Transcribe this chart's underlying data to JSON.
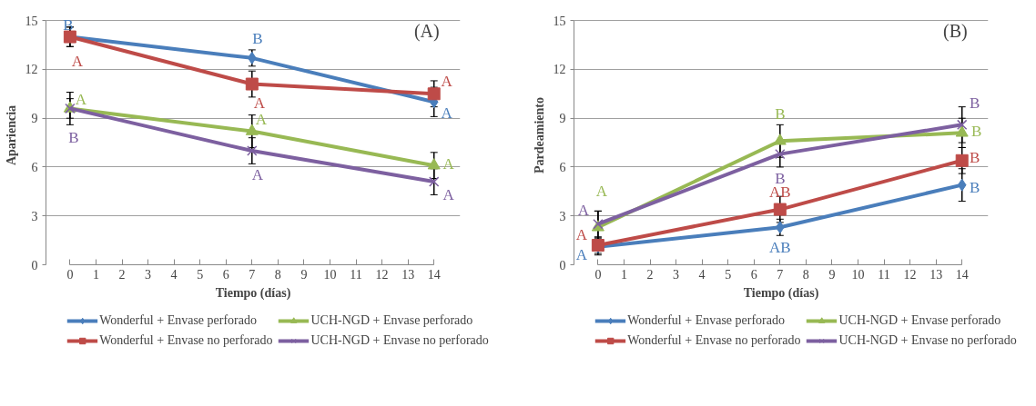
{
  "chart_data": [
    {
      "type": "line",
      "title": "(A)",
      "xlabel": "Tiempo (días)",
      "ylabel": "Apariencia",
      "x": [
        0,
        7,
        14
      ],
      "xlim": [
        0,
        14
      ],
      "xticks": [
        0,
        1,
        2,
        3,
        4,
        5,
        6,
        7,
        8,
        9,
        10,
        11,
        12,
        13,
        14
      ],
      "ylim": [
        0,
        15
      ],
      "yticks": [
        0,
        3,
        6,
        9,
        12,
        15
      ],
      "grid": "y",
      "legend": "bottom",
      "series": [
        {
          "name": "Wonderful + Envase perforado",
          "color": "#4a7ebb",
          "marker": "diamond",
          "values": [
            14.0,
            12.7,
            10.0
          ],
          "errors": [
            0.6,
            0.5,
            0.9
          ],
          "value_labels": [
            "B",
            "B",
            "A"
          ]
        },
        {
          "name": "Wonderful + Envase no perforado",
          "color": "#be4b48",
          "marker": "square",
          "values": [
            14.0,
            11.1,
            10.5
          ],
          "errors": [
            0.6,
            0.8,
            0.8
          ],
          "value_labels": [
            "A",
            "A",
            "A"
          ]
        },
        {
          "name": "UCH-NGD + Envase perforado",
          "color": "#98b954",
          "marker": "triangle",
          "values": [
            9.6,
            8.2,
            6.1
          ],
          "errors": [
            1.0,
            1.0,
            0.8
          ],
          "value_labels": [
            "A",
            "A",
            "A"
          ]
        },
        {
          "name": "UCH-NGD + Envase no perforado",
          "color": "#7d60a0",
          "marker": "cross",
          "values": [
            9.6,
            7.0,
            5.1
          ],
          "errors": [
            0.6,
            0.8,
            0.8
          ],
          "value_labels": [
            "B",
            "A",
            "A"
          ]
        }
      ]
    },
    {
      "type": "line",
      "title": "(B)",
      "xlabel": "Tiempo (días)",
      "ylabel": "Pardeamiento",
      "x": [
        0,
        7,
        14
      ],
      "xlim": [
        0,
        14
      ],
      "xticks": [
        0,
        1,
        2,
        3,
        4,
        5,
        6,
        7,
        8,
        9,
        10,
        11,
        12,
        13,
        14
      ],
      "ylim": [
        0,
        15
      ],
      "yticks": [
        0,
        3,
        6,
        9,
        12,
        15
      ],
      "grid": "y",
      "legend": "bottom",
      "series": [
        {
          "name": "Wonderful + Envase perforado",
          "color": "#4a7ebb",
          "marker": "diamond",
          "values": [
            1.1,
            2.3,
            4.9
          ],
          "errors": [
            0.5,
            0.5,
            1.0
          ],
          "value_labels": [
            "A",
            "AB",
            "B"
          ]
        },
        {
          "name": "Wonderful + Envase no perforado",
          "color": "#be4b48",
          "marker": "square",
          "values": [
            1.2,
            3.4,
            6.4
          ],
          "errors": [
            0.5,
            0.8,
            0.8
          ],
          "value_labels": [
            "A",
            "AB",
            "B"
          ]
        },
        {
          "name": "UCH-NGD + Envase perforado",
          "color": "#98b954",
          "marker": "triangle",
          "values": [
            2.3,
            7.6,
            8.1
          ],
          "errors": [
            1.0,
            1.0,
            0.9
          ],
          "value_labels": [
            "A",
            "B",
            "B"
          ]
        },
        {
          "name": "UCH-NGD + Envase no perforado",
          "color": "#7d60a0",
          "marker": "cross",
          "values": [
            2.5,
            6.8,
            8.6
          ],
          "errors": [
            0.8,
            0.8,
            1.1
          ],
          "value_labels": [
            "A",
            "B",
            "B"
          ]
        }
      ]
    }
  ]
}
